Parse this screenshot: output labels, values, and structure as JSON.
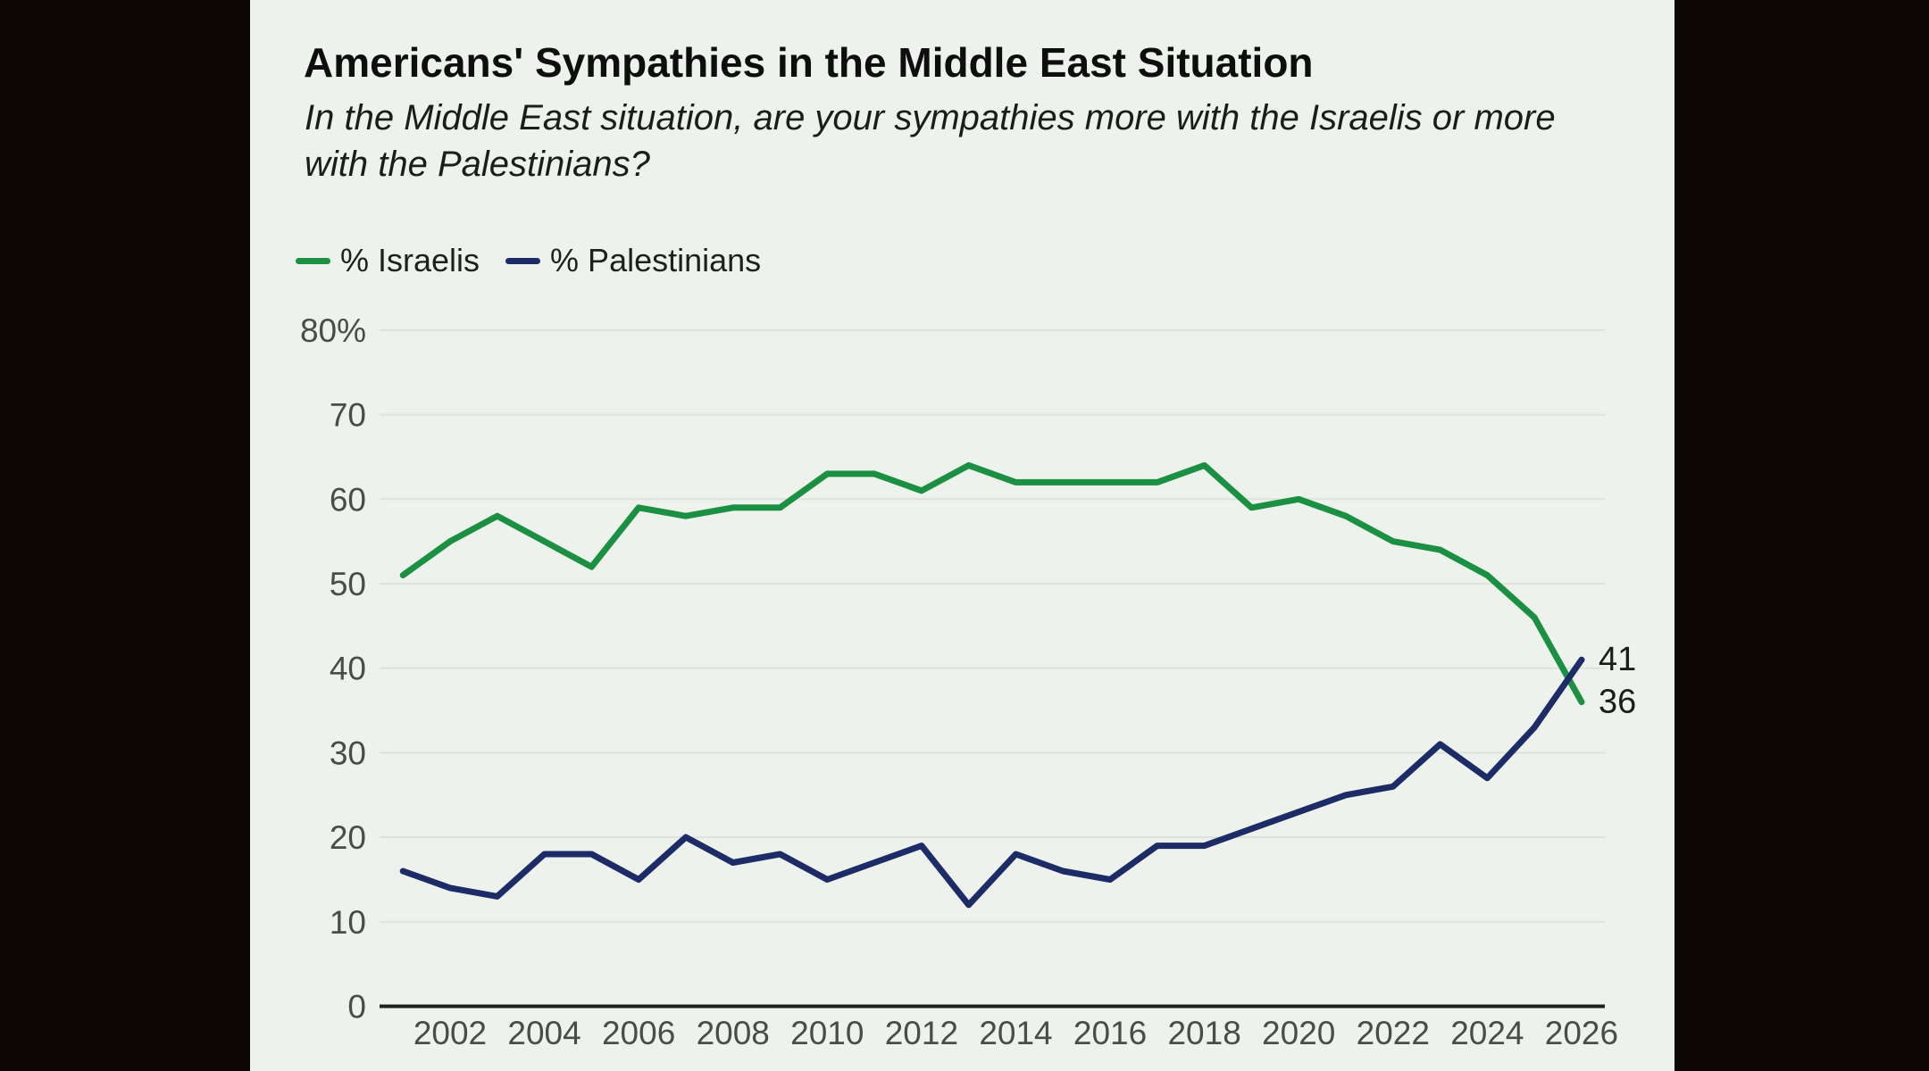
{
  "page": {
    "letterbox_color": "#0c0704",
    "panel_color": "#edf3ec"
  },
  "header": {
    "title": "Americans' Sympathies in the Middle East Situation",
    "subtitle_line1": "In the Middle East situation, are your sympathies more with the Israelis or more",
    "subtitle_line2": "with the Palestinians?"
  },
  "legend": {
    "items": [
      {
        "label": "% Israelis",
        "color": "#1b8f42"
      },
      {
        "label": "% Palestinians",
        "color": "#1d2b67"
      }
    ]
  },
  "chart_data": {
    "type": "line",
    "title": "Americans' Sympathies in the Middle East Situation",
    "subtitle": "In the Middle East situation, are your sympathies more with the Israelis or more with the Palestinians?",
    "x": [
      2001,
      2002,
      2003,
      2004,
      2005,
      2006,
      2007,
      2008,
      2009,
      2010,
      2011,
      2012,
      2013,
      2014,
      2015,
      2016,
      2017,
      2018,
      2019,
      2020,
      2021,
      2022,
      2023,
      2024,
      2025,
      2026
    ],
    "series": [
      {
        "name": "% Israelis",
        "color": "#1b8f42",
        "values": [
          51,
          55,
          58,
          55,
          52,
          59,
          58,
          59,
          59,
          63,
          63,
          61,
          64,
          62,
          62,
          62,
          62,
          64,
          59,
          60,
          58,
          55,
          54,
          51,
          46,
          36
        ],
        "end_label": "36"
      },
      {
        "name": "% Palestinians",
        "color": "#1d2b67",
        "values": [
          16,
          14,
          13,
          18,
          18,
          15,
          20,
          17,
          18,
          15,
          17,
          19,
          12,
          18,
          16,
          15,
          19,
          19,
          21,
          23,
          25,
          26,
          31,
          27,
          33,
          41
        ],
        "end_label": "41"
      }
    ],
    "xlabel": "",
    "ylabel": "",
    "ylim": [
      0,
      80
    ],
    "yticks": [
      0,
      10,
      20,
      30,
      40,
      50,
      60,
      70,
      80
    ],
    "ytick_top_label": "80%",
    "xticks": [
      2002,
      2004,
      2006,
      2008,
      2010,
      2012,
      2014,
      2016,
      2018,
      2020,
      2022,
      2024,
      2026
    ],
    "grid": true,
    "legend_position": "top-left",
    "colors": {
      "grid": "#dde3db",
      "axis": "#1f1f1f",
      "tick_label": "#4b4b4b",
      "end_label": "#1c1c1c"
    }
  }
}
